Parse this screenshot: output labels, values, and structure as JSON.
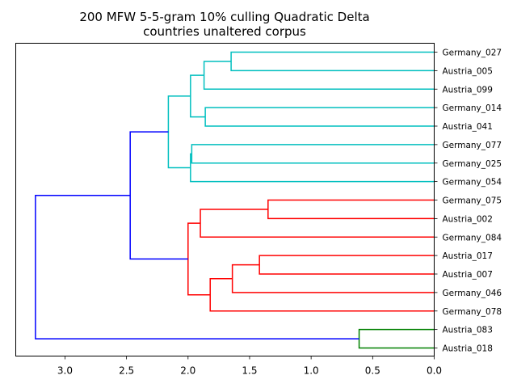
{
  "chart_data": {
    "type": "dendrogram",
    "title": [
      "200 MFW 5-5-gram 10% culling Quadratic Delta",
      "countries unaltered corpus"
    ],
    "xlabel": "",
    "ylabel": "",
    "xlim": [
      3.4,
      0.0
    ],
    "x_ticks": [
      3.0,
      2.5,
      2.0,
      1.5,
      1.0,
      0.5,
      0.0
    ],
    "x_tick_labels": [
      "3.0",
      "2.5",
      "2.0",
      "1.5",
      "1.0",
      "0.5",
      "0.0"
    ],
    "orientation": "left",
    "leaves": [
      "Germany_027",
      "Austria_005",
      "Austria_099",
      "Germany_014",
      "Austria_041",
      "Germany_077",
      "Germany_025",
      "Germany_054",
      "Germany_075",
      "Austria_002",
      "Germany_084",
      "Austria_017",
      "Austria_007",
      "Germany_046",
      "Germany_078",
      "Austria_083",
      "Austria_018"
    ],
    "colors": {
      "cluster_a": "#00bfbf",
      "cluster_b": "#ff0000",
      "cluster_c": "#008000",
      "root": "#0000ff"
    },
    "merges": [
      {
        "a": "Germany_027",
        "b": "Austria_005",
        "height": 1.65,
        "color": "cluster_a"
      },
      {
        "a": "m0",
        "b": "Austria_099",
        "height": 1.87,
        "color": "cluster_a"
      },
      {
        "a": "Germany_014",
        "b": "Austria_041",
        "height": 1.86,
        "color": "cluster_a"
      },
      {
        "a": "m1",
        "b": "m2",
        "height": 1.98,
        "color": "cluster_a"
      },
      {
        "a": "Germany_077",
        "b": "Germany_025",
        "height": 1.97,
        "color": "cluster_a"
      },
      {
        "a": "m4",
        "b": "Germany_054",
        "height": 1.98,
        "color": "cluster_a"
      },
      {
        "a": "m3",
        "b": "m5",
        "height": 2.16,
        "color": "cluster_a"
      },
      {
        "a": "Germany_075",
        "b": "Austria_002",
        "height": 1.35,
        "color": "cluster_b"
      },
      {
        "a": "m7",
        "b": "Germany_084",
        "height": 1.9,
        "color": "cluster_b"
      },
      {
        "a": "Austria_017",
        "b": "Austria_007",
        "height": 1.42,
        "color": "cluster_b"
      },
      {
        "a": "m9",
        "b": "Germany_046",
        "height": 1.64,
        "color": "cluster_b"
      },
      {
        "a": "m10",
        "b": "Germany_078",
        "height": 1.82,
        "color": "cluster_b"
      },
      {
        "a": "m8",
        "b": "m11",
        "height": 2.0,
        "color": "cluster_b"
      },
      {
        "a": "m6",
        "b": "m12",
        "height": 2.47,
        "color": "root"
      },
      {
        "a": "Austria_083",
        "b": "Austria_018",
        "height": 0.61,
        "color": "cluster_c"
      },
      {
        "a": "m13",
        "b": "m14",
        "height": 3.24,
        "color": "root"
      }
    ]
  }
}
